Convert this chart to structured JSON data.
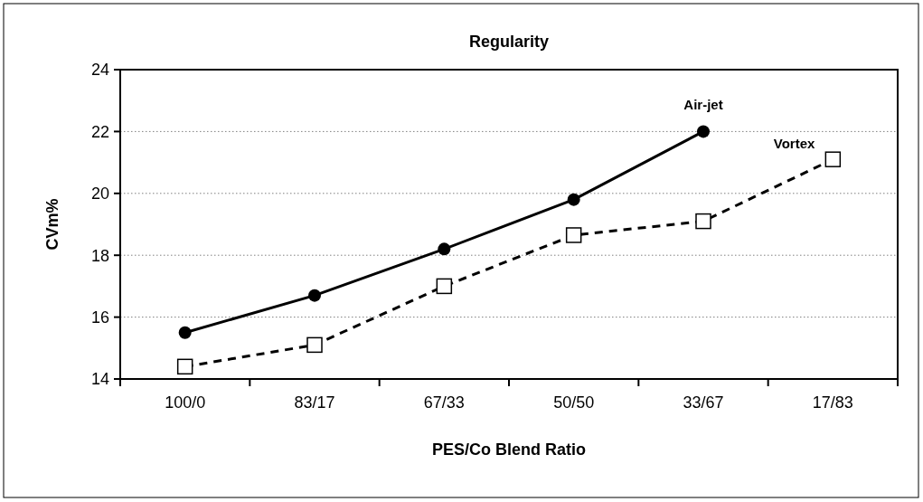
{
  "chart_data": {
    "type": "line",
    "title": "Regularity",
    "xlabel": "PES/Co Blend Ratio",
    "ylabel": "CVm%",
    "categories": [
      "100/0",
      "83/17",
      "67/33",
      "50/50",
      "33/67",
      "17/83"
    ],
    "series": [
      {
        "name": "Air-jet",
        "color": "#000000",
        "marker": "circle",
        "line_style": "solid",
        "values": [
          15.5,
          16.7,
          18.2,
          19.8,
          22.0,
          null
        ]
      },
      {
        "name": "Vortex",
        "color": "#000000",
        "marker": "square",
        "line_style": "dashed",
        "values": [
          14.4,
          15.1,
          17.0,
          18.65,
          19.1,
          21.1
        ]
      }
    ],
    "ylim": [
      14,
      24
    ],
    "yticks": [
      14,
      16,
      18,
      20,
      22,
      24
    ],
    "grid": "y"
  }
}
